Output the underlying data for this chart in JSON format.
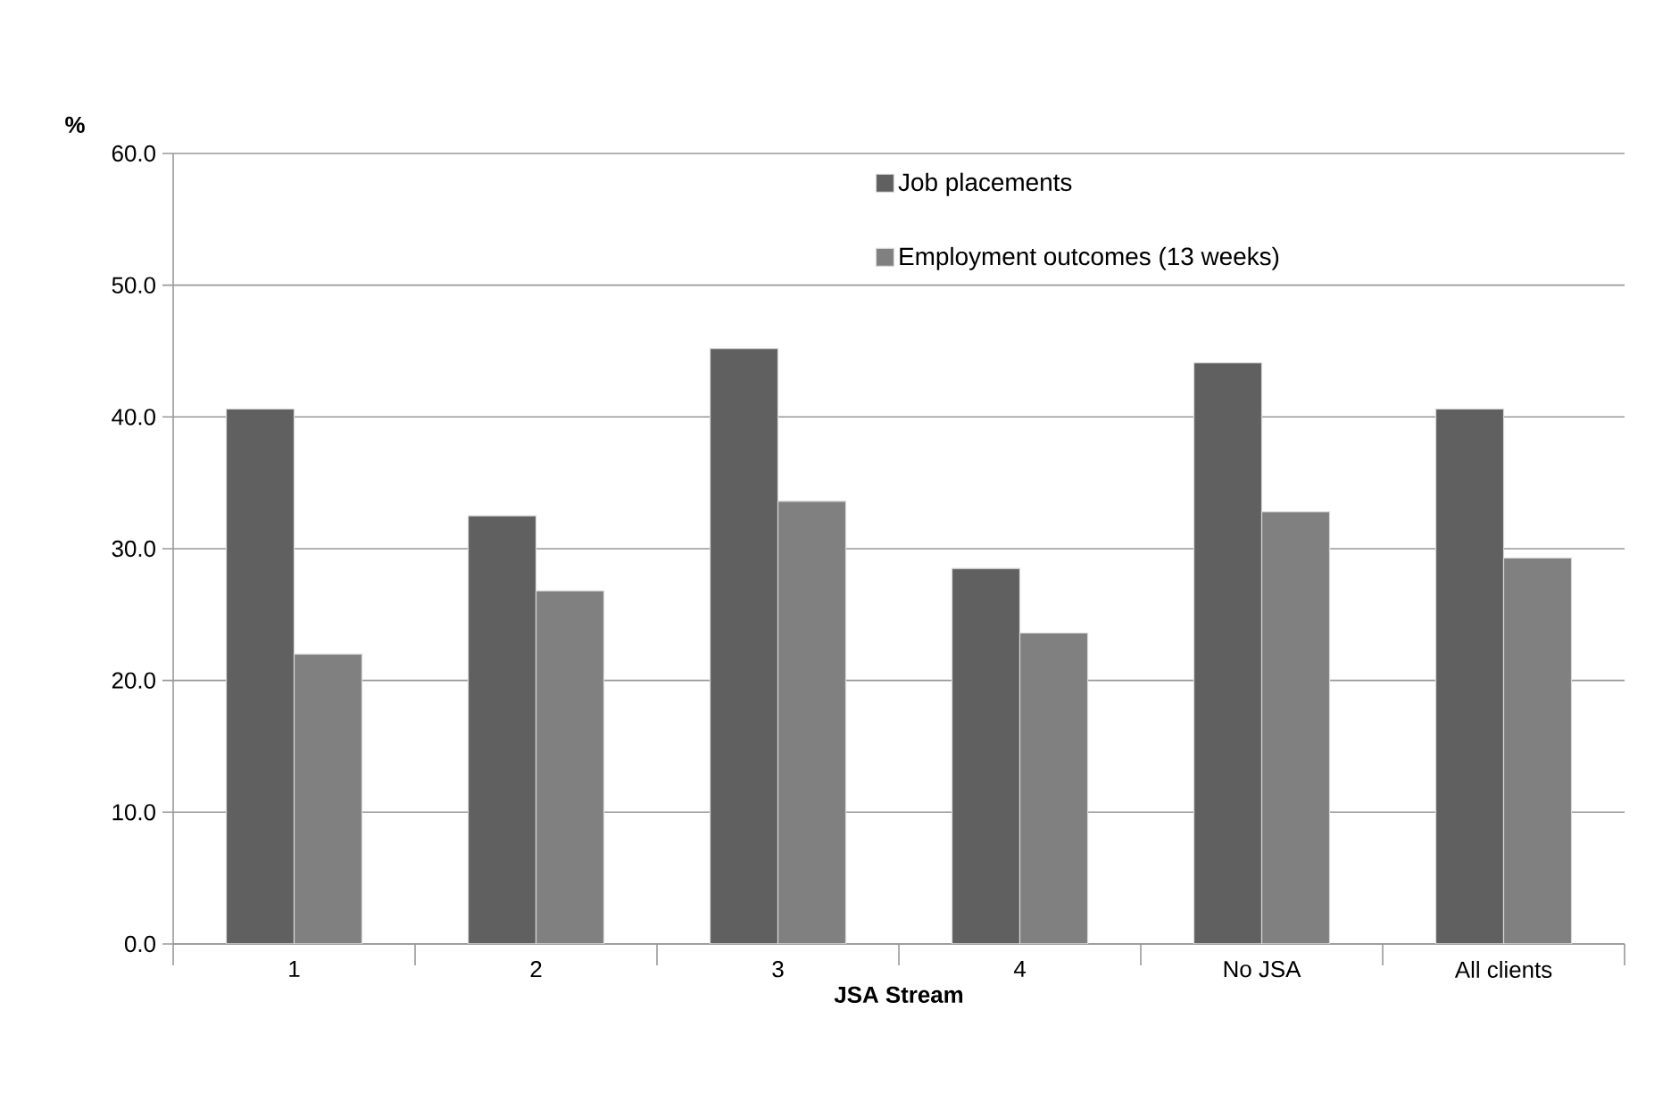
{
  "chart_data": {
    "type": "bar",
    "xlabel": "JSA Stream",
    "ylabel": "%",
    "categories": [
      "1",
      "2",
      "3",
      "4",
      "No JSA",
      "All clients"
    ],
    "series": [
      {
        "name": "Job placements",
        "color": "#606060",
        "values": [
          40.6,
          32.5,
          45.2,
          28.5,
          44.1,
          40.6
        ]
      },
      {
        "name": "Employment outcomes (13 weeks)",
        "color": "#808080",
        "values": [
          22.0,
          26.8,
          33.6,
          23.6,
          32.8,
          29.3
        ]
      }
    ],
    "ylim": [
      0,
      60
    ],
    "yticks": [
      {
        "value": 0,
        "label": "0.0"
      },
      {
        "value": 10,
        "label": "10.0"
      },
      {
        "value": 20,
        "label": "20.0"
      },
      {
        "value": 30,
        "label": "30.0"
      },
      {
        "value": 40,
        "label": "40.0"
      },
      {
        "value": 50,
        "label": "50.0"
      },
      {
        "value": 60,
        "label": "60.0"
      }
    ],
    "grid": "y",
    "legend": "top right"
  }
}
